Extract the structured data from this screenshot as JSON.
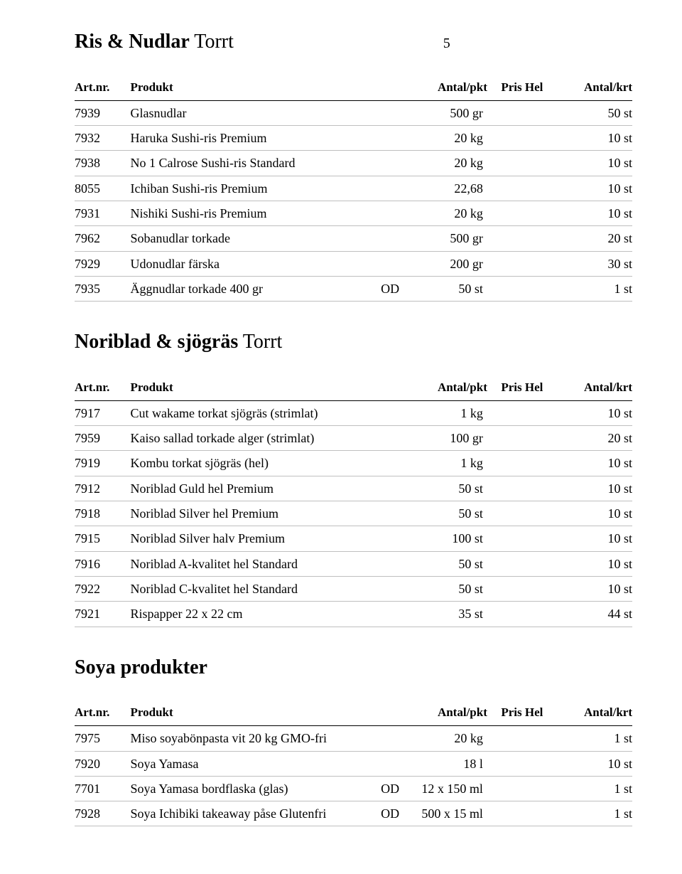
{
  "page_number": "5",
  "headers": {
    "art": "Art.nr.",
    "prod": "Produkt",
    "qty": "Antal/pkt",
    "price": "Pris Hel",
    "krt": "Antal/krt"
  },
  "sections": [
    {
      "title_bold": "Ris & Nudlar",
      "title_rest": " Torrt",
      "show_page_number": true,
      "rows": [
        {
          "art": "7939",
          "prod": "Glasnudlar",
          "flag": "",
          "qty": "500 gr",
          "krt": "50 st"
        },
        {
          "art": "7932",
          "prod": "Haruka Sushi-ris Premium",
          "flag": "",
          "qty": "20 kg",
          "krt": "10 st"
        },
        {
          "art": "7938",
          "prod": "No 1 Calrose Sushi-ris Standard",
          "flag": "",
          "qty": "20 kg",
          "krt": "10 st"
        },
        {
          "art": "8055",
          "prod": "Ichiban Sushi-ris Premium",
          "flag": "",
          "qty": "22,68",
          "krt": "10 st"
        },
        {
          "art": "7931",
          "prod": "Nishiki Sushi-ris Premium",
          "flag": "",
          "qty": "20 kg",
          "krt": "10 st"
        },
        {
          "art": "7962",
          "prod": "Sobanudlar torkade",
          "flag": "",
          "qty": "500 gr",
          "krt": "20 st"
        },
        {
          "art": "7929",
          "prod": "Udonudlar färska",
          "flag": "",
          "qty": "200 gr",
          "krt": "30 st"
        },
        {
          "art": "7935",
          "prod": "Äggnudlar torkade 400 gr",
          "flag": "OD",
          "qty": "50 st",
          "krt": "1 st"
        }
      ]
    },
    {
      "title_bold": "Noriblad & sjögräs",
      "title_rest": " Torrt",
      "show_page_number": false,
      "rows": [
        {
          "art": "7917",
          "prod": "Cut wakame torkat sjögräs (strimlat)",
          "flag": "",
          "qty": "1 kg",
          "krt": "10 st"
        },
        {
          "art": "7959",
          "prod": "Kaiso sallad torkade alger (strimlat)",
          "flag": "",
          "qty": "100 gr",
          "krt": "20 st"
        },
        {
          "art": "7919",
          "prod": "Kombu torkat sjögräs (hel)",
          "flag": "",
          "qty": "1 kg",
          "krt": "10 st"
        },
        {
          "art": "7912",
          "prod": "Noriblad Guld hel Premium",
          "flag": "",
          "qty": "50 st",
          "krt": "10 st"
        },
        {
          "art": "7918",
          "prod": "Noriblad Silver hel Premium",
          "flag": "",
          "qty": "50 st",
          "krt": "10 st"
        },
        {
          "art": "7915",
          "prod": "Noriblad Silver halv Premium",
          "flag": "",
          "qty": "100 st",
          "krt": "10 st"
        },
        {
          "art": "7916",
          "prod": "Noriblad A-kvalitet hel Standard",
          "flag": "",
          "qty": "50 st",
          "krt": "10 st"
        },
        {
          "art": "7922",
          "prod": "Noriblad C-kvalitet hel Standard",
          "flag": "",
          "qty": "50 st",
          "krt": "10 st"
        },
        {
          "art": "7921",
          "prod": "Rispapper 22 x 22 cm",
          "flag": "",
          "qty": "35 st",
          "krt": "44 st"
        }
      ]
    },
    {
      "title_bold": "Soya produkter",
      "title_rest": "",
      "show_page_number": false,
      "rows": [
        {
          "art": "7975",
          "prod": "Miso soyabönpasta vit 20 kg GMO-fri",
          "flag": "",
          "qty": "20 kg",
          "krt": "1 st"
        },
        {
          "art": "7920",
          "prod": "Soya Yamasa",
          "flag": "",
          "qty": "18 l",
          "krt": "10 st"
        },
        {
          "art": "7701",
          "prod": "Soya Yamasa bordflaska (glas)",
          "flag": "OD",
          "qty": "12 x 150 ml",
          "krt": "1 st"
        },
        {
          "art": "7928",
          "prod": "Soya Ichibiki takeaway påse Glutenfri",
          "flag": "OD",
          "qty": "500 x 15 ml",
          "krt": "1 st"
        }
      ]
    }
  ]
}
